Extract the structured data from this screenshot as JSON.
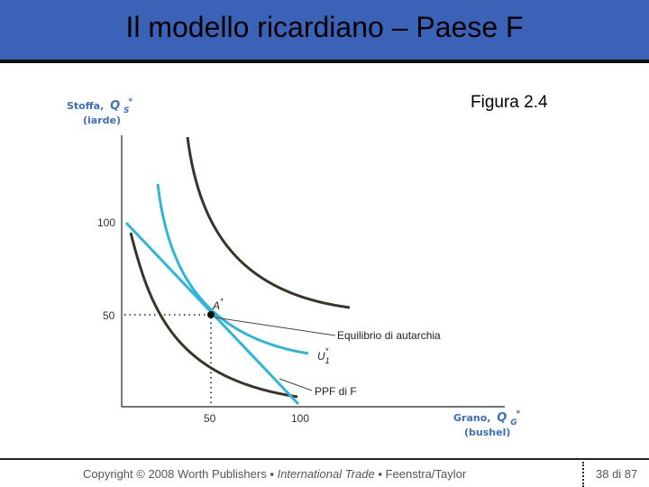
{
  "slide": {
    "title": "Il modello ricardiano – Paese F",
    "figure_label": "Figura 2.4"
  },
  "diagram": {
    "y_axis": {
      "name": "Stoffa,",
      "symbol": "Q",
      "sub": "S",
      "sup": "*",
      "unit": "(iarde)"
    },
    "x_axis": {
      "name": "Grano,",
      "symbol": "Q",
      "sub": "G",
      "sup": "*",
      "unit": "(bushel)"
    },
    "y_ticks": [
      "100",
      "50"
    ],
    "x_ticks": [
      "50",
      "100"
    ],
    "point": {
      "name": "A",
      "sup": "*"
    },
    "indifference_label": {
      "name": "U",
      "sub": "1",
      "sup": "*"
    },
    "annotations": {
      "autarky": "Equilibrio di autarchia",
      "ppf": "PPF di F"
    },
    "colors": {
      "ppf_line": "#2fb5d9",
      "indifference": "#2fb5d9",
      "curves": "#3b3428",
      "labels": "#3a6fc4"
    }
  },
  "footer": {
    "copyright": "Copyright © 2008 Worth Publishers",
    "book": "International Trade",
    "authors": "Feenstra/Taylor",
    "page": "38 di 87"
  }
}
